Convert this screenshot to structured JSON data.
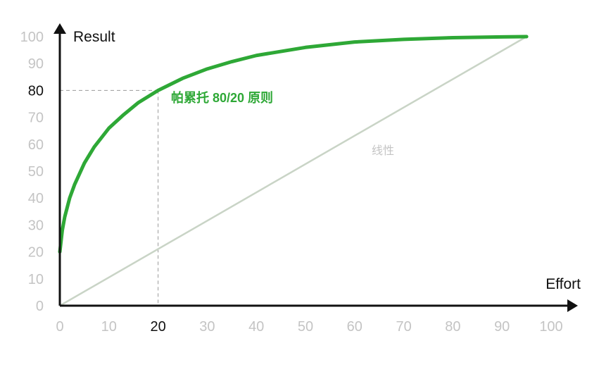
{
  "chart_data": {
    "type": "line",
    "title": "",
    "xlabel": "Effort",
    "ylabel": "Result",
    "xlim": [
      0,
      100
    ],
    "ylim": [
      0,
      100
    ],
    "x_ticks": [
      0,
      10,
      20,
      30,
      40,
      50,
      60,
      70,
      80,
      90,
      100
    ],
    "y_ticks": [
      0,
      10,
      20,
      30,
      40,
      50,
      60,
      70,
      80,
      90,
      100
    ],
    "highlight_x": 20,
    "highlight_y": 80,
    "grid": false,
    "series": [
      {
        "name": "帕累托 80/20 原则",
        "color": "#2ea836",
        "x": [
          0,
          0.5,
          1,
          2,
          3,
          5,
          7,
          10,
          13,
          16,
          20,
          25,
          30,
          35,
          40,
          50,
          60,
          70,
          80,
          90,
          95
        ],
        "y": [
          20,
          28,
          33,
          40,
          45,
          53,
          59,
          66,
          71,
          75.5,
          80,
          84.5,
          88,
          90.7,
          93,
          96,
          98,
          99,
          99.6,
          99.9,
          100
        ]
      },
      {
        "name": "线性",
        "color": "#c9d4c6",
        "x": [
          0,
          95
        ],
        "y": [
          0,
          100
        ]
      }
    ],
    "axis_color": "#111111",
    "guide_color": "#999999"
  }
}
